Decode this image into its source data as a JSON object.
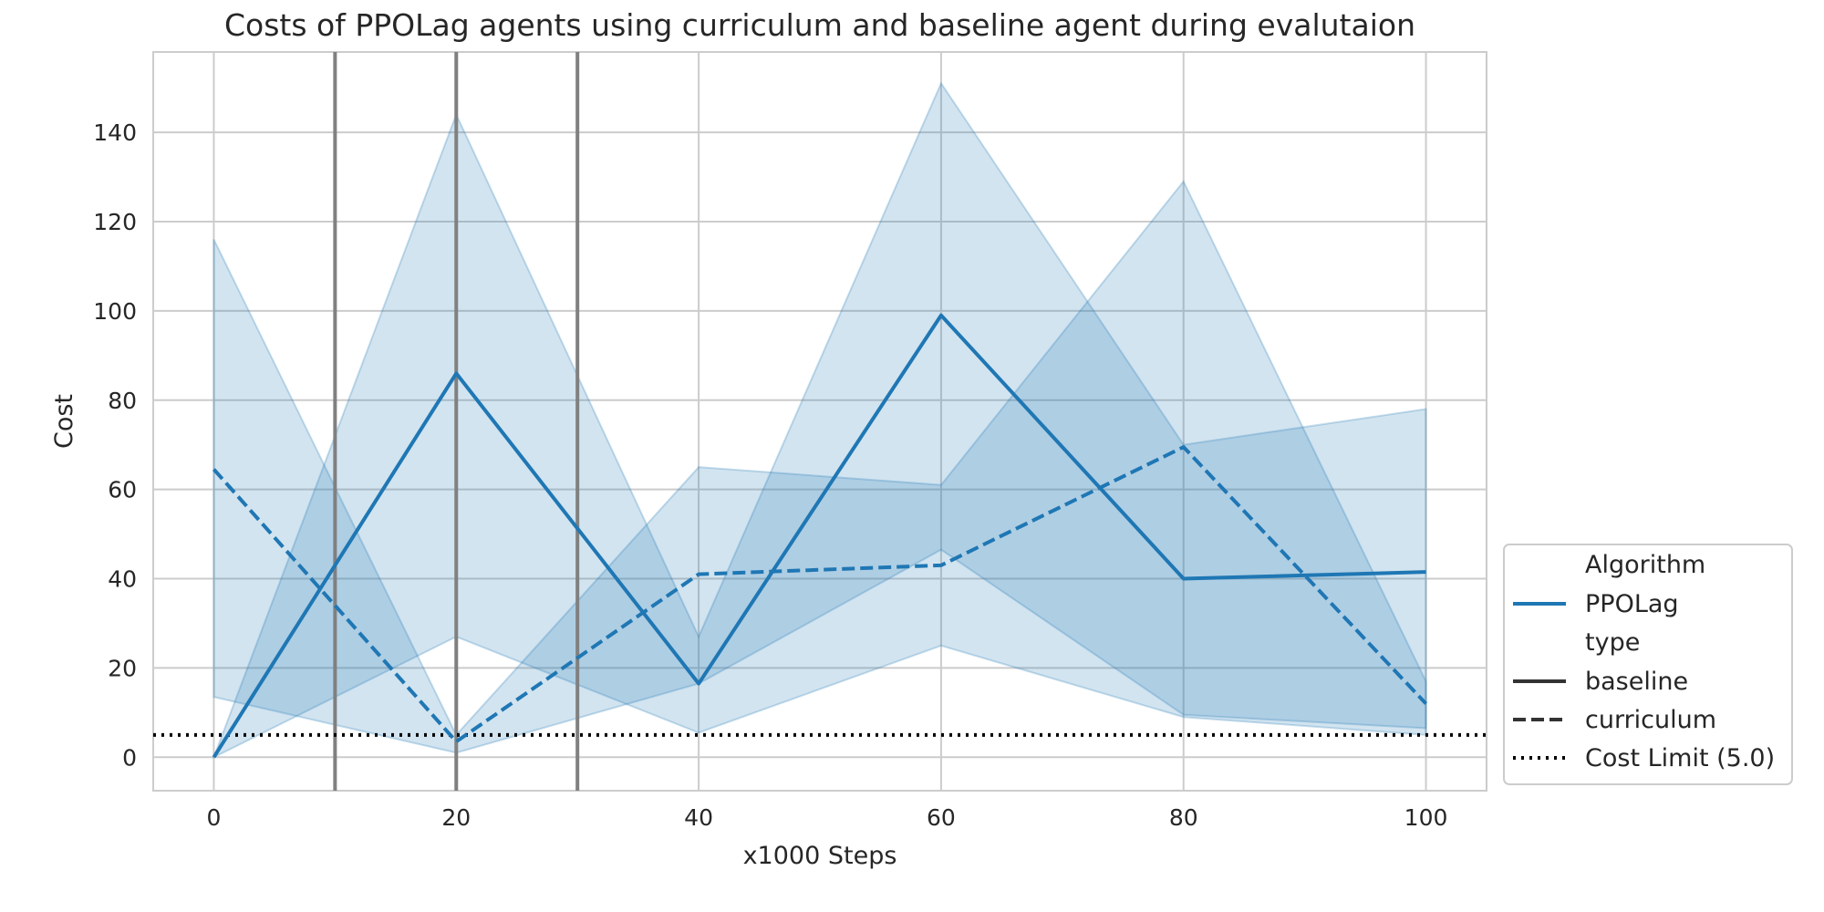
{
  "chart_data": {
    "type": "line",
    "title": "Costs of PPOLag agents using curriculum and baseline agent during evalutaion",
    "xlabel": "x1000 Steps",
    "ylabel": "Cost",
    "xlim": [
      -5,
      105
    ],
    "ylim": [
      -7.5,
      158
    ],
    "xticks": [
      0,
      20,
      40,
      60,
      80,
      100
    ],
    "yticks": [
      0,
      20,
      40,
      60,
      80,
      100,
      120,
      140
    ],
    "grid": true,
    "legend_placement": "lower-right-outside",
    "color": "#1f77b4",
    "band_color": "#1f77b4",
    "vlines": {
      "x": [
        10,
        20,
        30
      ],
      "color": "#808080"
    },
    "cost_limit": {
      "y": 5.0,
      "label": "Cost Limit (5.0)",
      "color": "#000000"
    },
    "legend": {
      "algorithm_header": "Algorithm",
      "algorithm_entry": "PPOLag",
      "type_header": "type",
      "baseline_entry": "baseline",
      "curriculum_entry": "curriculum",
      "cost_limit_entry": "Cost Limit (5.0)"
    },
    "series": [
      {
        "name": "baseline",
        "dash": "solid",
        "x": [
          0,
          20,
          40,
          60,
          80,
          100
        ],
        "y": [
          0,
          86,
          16.5,
          99,
          40,
          41.5
        ],
        "lower": [
          0,
          27,
          5.5,
          25,
          9,
          5
        ],
        "upper": [
          0,
          144,
          27,
          151,
          70,
          78
        ]
      },
      {
        "name": "curriculum",
        "dash": "dashed",
        "x": [
          0,
          20,
          40,
          60,
          80,
          100
        ],
        "y": [
          64.5,
          3.5,
          41,
          43,
          69.5,
          12
        ],
        "lower": [
          13.5,
          1,
          16.5,
          46.5,
          9.5,
          6.5
        ],
        "upper": [
          116,
          5,
          65,
          61,
          129,
          17
        ]
      }
    ]
  }
}
